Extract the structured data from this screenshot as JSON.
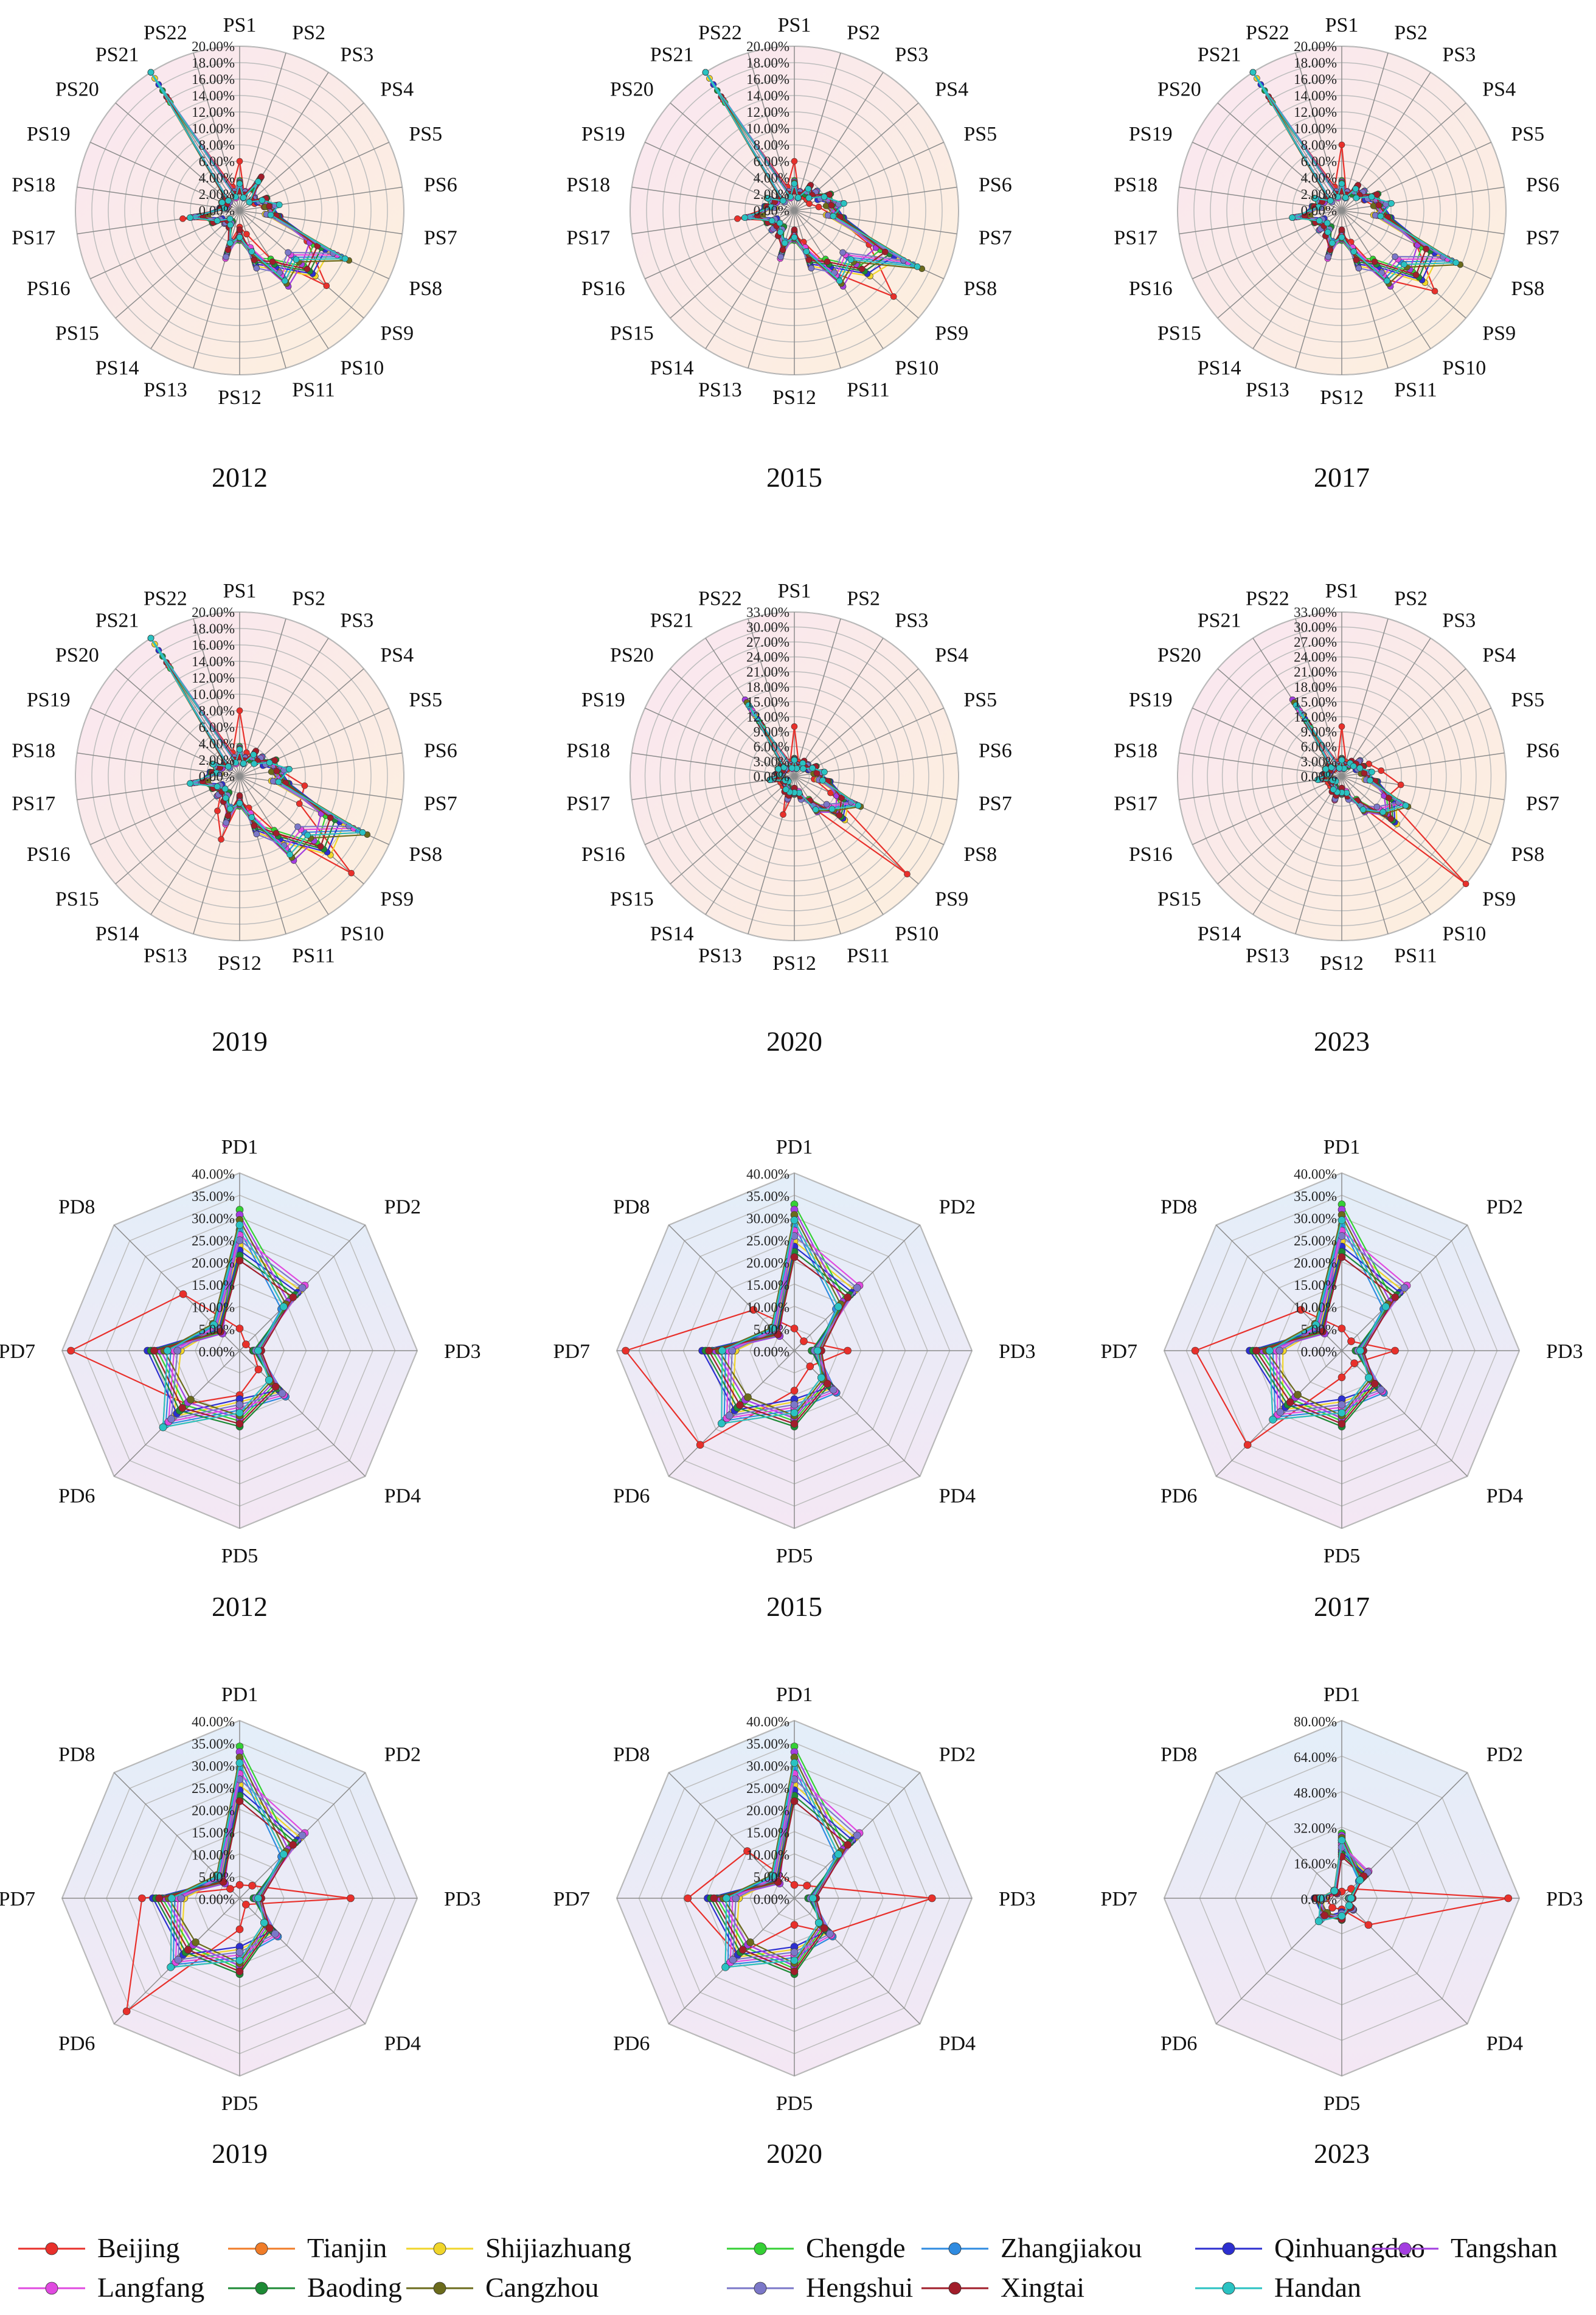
{
  "chart_data": {
    "type": "radar",
    "value_format": "percent_2dp",
    "legend": {
      "placement": "bottom",
      "entries": [
        "Beijing",
        "Tianjin",
        "Shijiazhuang",
        "Chengde",
        "Zhangjiakou",
        "Qinhuangdao",
        "Tangshan",
        "Langfang",
        "Baoding",
        "Cangzhou",
        "Hengshui",
        "Xingtai",
        "Handan"
      ]
    },
    "colors": {
      "Beijing": "#e8302b",
      "Tianjin": "#f07c28",
      "Shijiazhuang": "#f0d52a",
      "Chengde": "#35d035",
      "Zhangjiakou": "#2f8be0",
      "Qinhuangdao": "#2d2fd0",
      "Tangshan": "#a33ee0",
      "Langfang": "#e04ae0",
      "Baoding": "#1d8a35",
      "Cangzhou": "#6b6b1c",
      "Hengshui": "#7b77c8",
      "Xingtai": "#a11d2a",
      "Handan": "#2ac2c2"
    },
    "base_series": {
      "ps_2012": [
        3,
        2,
        4,
        2,
        3,
        4,
        4,
        12,
        10,
        9,
        6,
        3,
        5,
        2,
        2,
        3,
        5,
        2,
        2,
        2,
        20,
        2
      ],
      "ps_2015": [
        3,
        2,
        3,
        3,
        4,
        5,
        5,
        14,
        10,
        9,
        6,
        3,
        5,
        3,
        3,
        3,
        5,
        3,
        3,
        2,
        20,
        2
      ],
      "ps_2017": [
        3,
        2,
        3,
        3,
        4,
        5,
        5,
        13,
        11,
        9,
        6,
        3,
        5,
        3,
        3,
        3,
        5,
        3,
        3,
        2,
        20,
        2
      ],
      "ps_2019": [
        3,
        2,
        3,
        3,
        4,
        5,
        5,
        14,
        12,
        10,
        6,
        3,
        5,
        3,
        3,
        3,
        5,
        3,
        3,
        2,
        20,
        2
      ],
      "ps_2020": [
        3,
        2,
        3,
        3,
        4,
        5,
        6,
        12,
        11,
        7,
        4,
        3,
        4,
        3,
        2,
        2,
        4,
        3,
        3,
        3,
        15,
        2
      ],
      "ps_2023": [
        3,
        2,
        3,
        4,
        4,
        5,
        6,
        12,
        12,
        7,
        4,
        3,
        4,
        3,
        2,
        2,
        4,
        3,
        3,
        3,
        15,
        2
      ],
      "pd_2012": [
        26,
        17,
        4,
        12,
        14,
        20,
        17,
        7
      ],
      "pd_2015": [
        27,
        17,
        5,
        11,
        14,
        19,
        17,
        6
      ],
      "pd_2017": [
        27,
        17,
        4,
        11,
        14,
        18,
        17,
        7
      ],
      "pd_2019": [
        28,
        17,
        4,
        10,
        14,
        18,
        16,
        6
      ],
      "pd_2020": [
        28,
        17,
        4,
        10,
        14,
        18,
        16,
        6
      ],
      "pd_2023": [
        24,
        14,
        4,
        6,
        8,
        12,
        10,
        4
      ]
    },
    "beijing_series": {
      "ps_2012": [
        6,
        2,
        3,
        2,
        2,
        3,
        5,
        9,
        14,
        7,
        3,
        2,
        4,
        2,
        2,
        3,
        7,
        2,
        2,
        2,
        16,
        3
      ],
      "ps_2015": [
        6,
        2,
        2,
        2,
        2,
        3,
        5,
        10,
        16,
        9,
        4,
        3,
        4,
        3,
        3,
        3,
        7,
        3,
        3,
        2,
        16,
        3
      ],
      "ps_2017": [
        8,
        2,
        3,
        3,
        3,
        4,
        6,
        10,
        15,
        10,
        4,
        3,
        6,
        3,
        3,
        3,
        6,
        3,
        3,
        2,
        16,
        3
      ],
      "ps_2019": [
        8,
        3,
        3,
        3,
        4,
        5,
        8,
        8,
        18,
        8,
        4,
        3,
        8,
        5,
        3,
        3,
        6,
        3,
        3,
        2,
        16,
        3
      ],
      "ps_2020": [
        10,
        3,
        3,
        3,
        3,
        4,
        4,
        8,
        30,
        8,
        4,
        3,
        8,
        3,
        3,
        3,
        5,
        3,
        3,
        2,
        12,
        3
      ],
      "ps_2023": [
        10,
        3,
        3,
        4,
        6,
        8,
        12,
        10,
        33,
        7,
        4,
        3,
        5,
        3,
        3,
        3,
        4,
        3,
        3,
        2,
        12,
        3
      ],
      "pd_2012": [
        5,
        2,
        3,
        6,
        10,
        17,
        38,
        18
      ],
      "pd_2015": [
        5,
        3,
        12,
        5,
        9,
        30,
        38,
        13
      ],
      "pd_2017": [
        5,
        3,
        12,
        4,
        6,
        30,
        33,
        13
      ],
      "pd_2019": [
        3,
        4,
        25,
        2,
        7,
        36,
        22,
        3
      ],
      "pd_2020": [
        3,
        4,
        31,
        11,
        6,
        18,
        24,
        15
      ],
      "pd_2023": [
        3,
        6,
        75,
        17,
        5,
        6,
        7,
        3
      ]
    },
    "charts": [
      {
        "kind": "PS",
        "year": "2012",
        "max": 20,
        "step": 2,
        "categories": [
          "PS1",
          "PS2",
          "PS3",
          "PS4",
          "PS5",
          "PS6",
          "PS7",
          "PS8",
          "PS9",
          "PS10",
          "PS11",
          "PS12",
          "PS13",
          "PS14",
          "PS15",
          "PS16",
          "PS17",
          "PS18",
          "PS19",
          "PS20",
          "PS21",
          "PS22"
        ],
        "ticks": [
          "0.00%",
          "2.00%",
          "4.00%",
          "6.00%",
          "8.00%",
          "10.00%",
          "12.00%",
          "14.00%",
          "16.00%",
          "18.00%",
          "20.00%"
        ]
      },
      {
        "kind": "PS",
        "year": "2015",
        "max": 20,
        "step": 2,
        "categories": [
          "PS1",
          "PS2",
          "PS3",
          "PS4",
          "PS5",
          "PS6",
          "PS7",
          "PS8",
          "PS9",
          "PS10",
          "PS11",
          "PS12",
          "PS13",
          "PS14",
          "PS15",
          "PS16",
          "PS17",
          "PS18",
          "PS19",
          "PS20",
          "PS21",
          "PS22"
        ],
        "ticks": [
          "0.00%",
          "2.00%",
          "4.00%",
          "6.00%",
          "8.00%",
          "10.00%",
          "12.00%",
          "14.00%",
          "16.00%",
          "18.00%",
          "20.00%"
        ]
      },
      {
        "kind": "PS",
        "year": "2017",
        "max": 20,
        "step": 2,
        "categories": [
          "PS1",
          "PS2",
          "PS3",
          "PS4",
          "PS5",
          "PS6",
          "PS7",
          "PS8",
          "PS9",
          "PS10",
          "PS11",
          "PS12",
          "PS13",
          "PS14",
          "PS15",
          "PS16",
          "PS17",
          "PS18",
          "PS19",
          "PS20",
          "PS21",
          "PS22"
        ],
        "ticks": [
          "0.00%",
          "2.00%",
          "4.00%",
          "6.00%",
          "8.00%",
          "10.00%",
          "12.00%",
          "14.00%",
          "16.00%",
          "18.00%",
          "20.00%"
        ]
      },
      {
        "kind": "PS",
        "year": "2019",
        "max": 20,
        "step": 2,
        "categories": [
          "PS1",
          "PS2",
          "PS3",
          "PS4",
          "PS5",
          "PS6",
          "PS7",
          "PS8",
          "PS9",
          "PS10",
          "PS11",
          "PS12",
          "PS13",
          "PS14",
          "PS15",
          "PS16",
          "PS17",
          "PS18",
          "PS19",
          "PS20",
          "PS21",
          "PS22"
        ],
        "ticks": [
          "0.00%",
          "2.00%",
          "4.00%",
          "6.00%",
          "8.00%",
          "10.00%",
          "12.00%",
          "14.00%",
          "16.00%",
          "18.00%",
          "20.00%"
        ]
      },
      {
        "kind": "PS",
        "year": "2020",
        "max": 33,
        "step": 3,
        "categories": [
          "PS1",
          "PS2",
          "PS3",
          "PS4",
          "PS5",
          "PS6",
          "PS7",
          "PS8",
          "PS9",
          "PS10",
          "PS11",
          "PS12",
          "PS13",
          "PS14",
          "PS15",
          "PS16",
          "PS17",
          "PS18",
          "PS19",
          "PS20",
          "PS21",
          "PS22"
        ],
        "ticks": [
          "0.00%",
          "3.00%",
          "6.00%",
          "9.00%",
          "12.00%",
          "15.00%",
          "18.00%",
          "21.00%",
          "24.00%",
          "27.00%",
          "30.00%",
          "33.00%"
        ]
      },
      {
        "kind": "PS",
        "year": "2023",
        "max": 33,
        "step": 3,
        "categories": [
          "PS1",
          "PS2",
          "PS3",
          "PS4",
          "PS5",
          "PS6",
          "PS7",
          "PS8",
          "PS9",
          "PS10",
          "PS11",
          "PS12",
          "PS13",
          "PS14",
          "PS15",
          "PS16",
          "PS17",
          "PS18",
          "PS19",
          "PS20",
          "PS21",
          "PS22"
        ],
        "ticks": [
          "0.00%",
          "3.00%",
          "6.00%",
          "9.00%",
          "12.00%",
          "15.00%",
          "18.00%",
          "21.00%",
          "24.00%",
          "27.00%",
          "30.00%",
          "33.00%"
        ]
      },
      {
        "kind": "PD",
        "year": "2012",
        "max": 40,
        "step": 5,
        "categories": [
          "PD1",
          "PD2",
          "PD3",
          "PD4",
          "PD5",
          "PD6",
          "PD7",
          "PD8"
        ],
        "ticks": [
          "0.00%",
          "5.00%",
          "10.00%",
          "15.00%",
          "20.00%",
          "25.00%",
          "30.00%",
          "35.00%",
          "40.00%"
        ]
      },
      {
        "kind": "PD",
        "year": "2015",
        "max": 40,
        "step": 5,
        "categories": [
          "PD1",
          "PD2",
          "PD3",
          "PD4",
          "PD5",
          "PD6",
          "PD7",
          "PD8"
        ],
        "ticks": [
          "0.00%",
          "5.00%",
          "10.00%",
          "15.00%",
          "20.00%",
          "25.00%",
          "30.00%",
          "35.00%",
          "40.00%"
        ]
      },
      {
        "kind": "PD",
        "year": "2017",
        "max": 40,
        "step": 5,
        "categories": [
          "PD1",
          "PD2",
          "PD3",
          "PD4",
          "PD5",
          "PD6",
          "PD7",
          "PD8"
        ],
        "ticks": [
          "0.00%",
          "5.00%",
          "10.00%",
          "15.00%",
          "20.00%",
          "25.00%",
          "30.00%",
          "35.00%",
          "40.00%"
        ]
      },
      {
        "kind": "PD",
        "year": "2019",
        "max": 40,
        "step": 5,
        "categories": [
          "PD1",
          "PD2",
          "PD3",
          "PD4",
          "PD5",
          "PD6",
          "PD7",
          "PD8"
        ],
        "ticks": [
          "0.00%",
          "5.00%",
          "10.00%",
          "15.00%",
          "20.00%",
          "25.00%",
          "30.00%",
          "35.00%",
          "40.00%"
        ]
      },
      {
        "kind": "PD",
        "year": "2020",
        "max": 40,
        "step": 5,
        "categories": [
          "PD1",
          "PD2",
          "PD3",
          "PD4",
          "PD5",
          "PD6",
          "PD7",
          "PD8"
        ],
        "ticks": [
          "0.00%",
          "5.00%",
          "10.00%",
          "15.00%",
          "20.00%",
          "25.00%",
          "30.00%",
          "35.00%",
          "40.00%"
        ]
      },
      {
        "kind": "PD",
        "year": "2023",
        "max": 80,
        "step": 16,
        "categories": [
          "PD1",
          "PD2",
          "PD3",
          "PD4",
          "PD5",
          "PD6",
          "PD7",
          "PD8"
        ],
        "ticks": [
          "0.00%",
          "16.00%",
          "32.00%",
          "48.00%",
          "64.00%",
          "80.00%"
        ]
      }
    ]
  }
}
